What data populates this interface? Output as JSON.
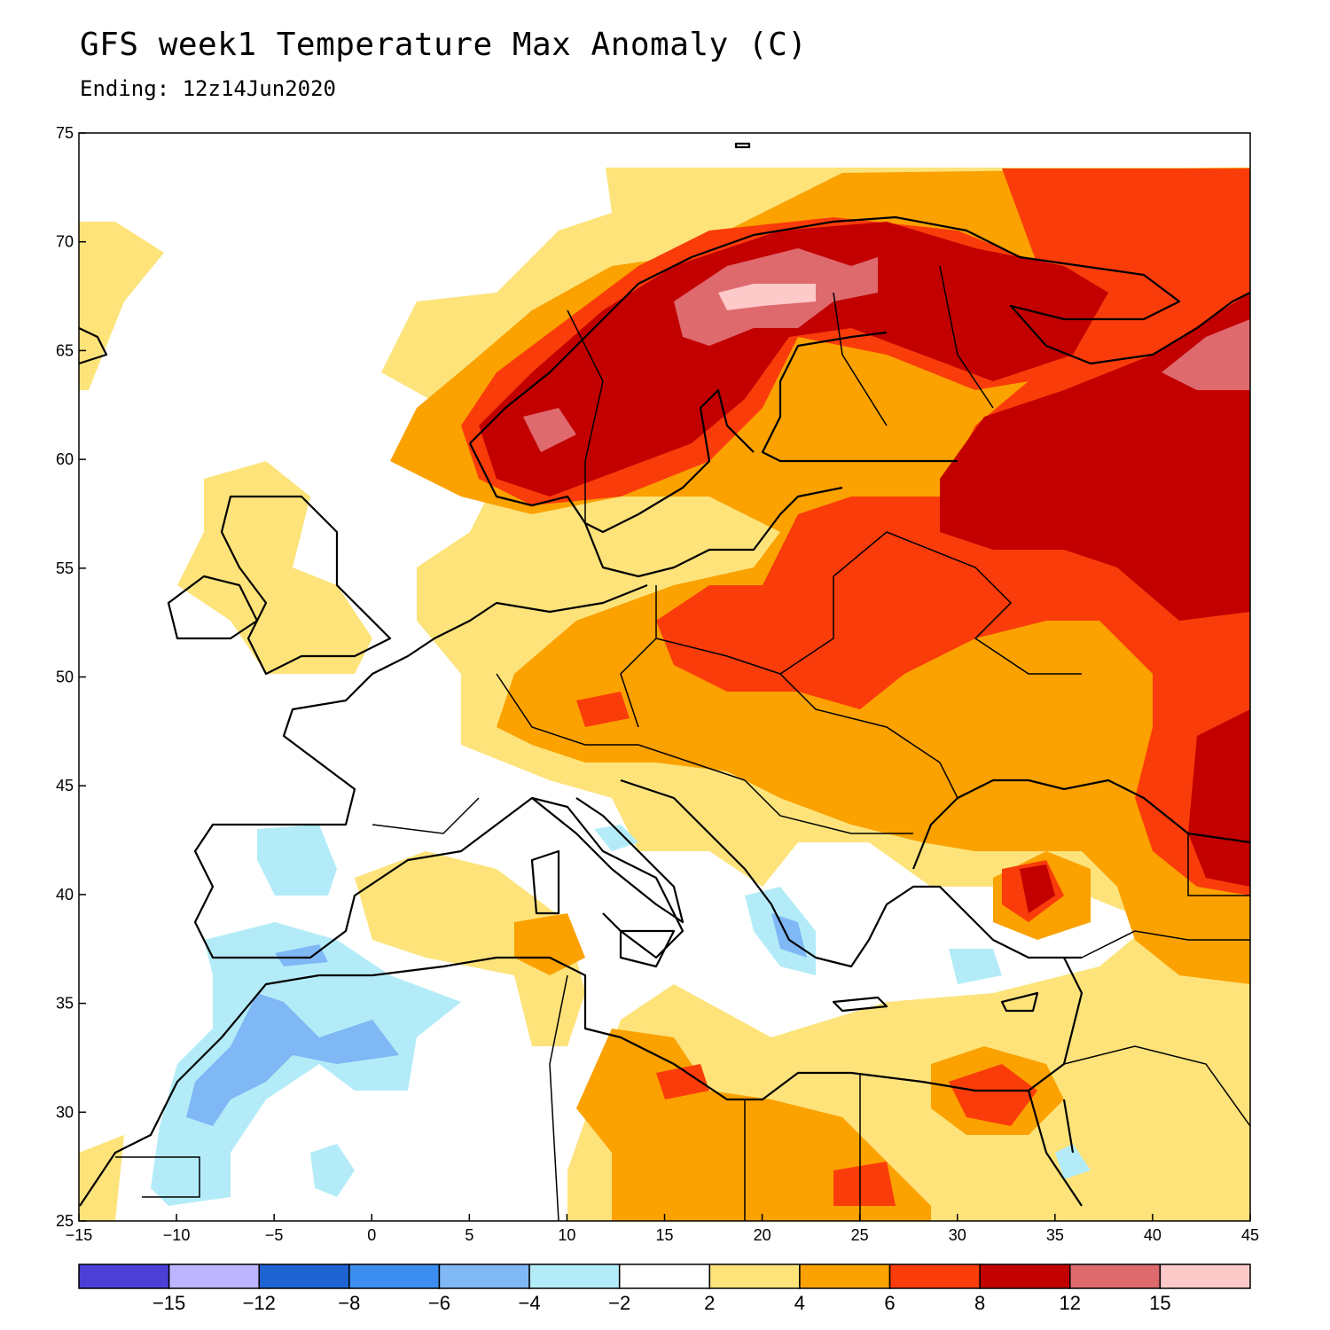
{
  "title": "GFS week1 Temperature Max Anomaly (C)",
  "subtitle": "Ending: 12z14Jun2020",
  "map": {
    "lon_range": [
      -15,
      45
    ],
    "lat_range": [
      25,
      75
    ],
    "lon_ticks": [
      "−15",
      "−10",
      "−5",
      "0",
      "5",
      "10",
      "15",
      "20",
      "25",
      "30",
      "35",
      "40",
      "45"
    ],
    "lat_ticks": [
      "25",
      "30",
      "35",
      "40",
      "45",
      "50",
      "55",
      "60",
      "65",
      "70",
      "75"
    ]
  },
  "colorbar": {
    "colors": [
      "#4b3fd6",
      "#bdb5ff",
      "#1d63d2",
      "#3b8ef0",
      "#7fb8f5",
      "#b3ecf8",
      "#ffffff",
      "#fde37a",
      "#fba100",
      "#fa3c0a",
      "#c20000",
      "#de6a6e",
      "#fdc9c9"
    ],
    "labels": [
      "−15",
      "−12",
      "−8",
      "−6",
      "−4",
      "−2",
      "2",
      "4",
      "6",
      "8",
      "12",
      "15"
    ]
  },
  "palette": {
    "c2": "#fde37a",
    "c4": "#fba100",
    "c6": "#fa3c0a",
    "c8": "#c20000",
    "c12": "#de6a6e",
    "c15": "#fdc9c9",
    "m2": "#b3ecf8",
    "m4": "#7fb8f5",
    "m6": "#3b8ef0"
  }
}
